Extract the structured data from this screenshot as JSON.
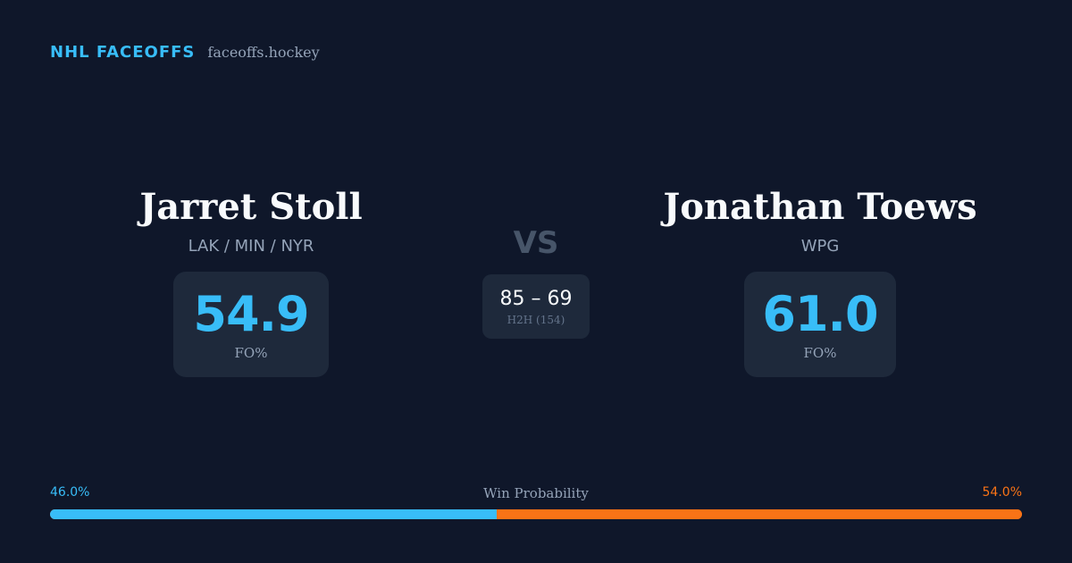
{
  "header": {
    "brand": "NHL FACEOFFS",
    "domain": "faceoffs.hockey"
  },
  "player_left": {
    "name": "Jarret Stoll",
    "teams": "LAK / MIN / NYR",
    "fo_value": "54.9",
    "fo_label": "FO%"
  },
  "player_right": {
    "name": "Jonathan Toews",
    "teams": "WPG",
    "fo_value": "61.0",
    "fo_label": "FO%"
  },
  "versus": {
    "label": "VS",
    "h2h_score": "85 – 69",
    "h2h_label": "H2H (154)"
  },
  "win_probability": {
    "title": "Win Probability",
    "left_label": "46.0%",
    "right_label": "54.0%",
    "left_fraction": 0.46,
    "right_fraction": 0.54
  },
  "colors": {
    "background": "#0f172a",
    "card": "#1e293b",
    "accent_left": "#38bdf8",
    "accent_right": "#f97316"
  }
}
